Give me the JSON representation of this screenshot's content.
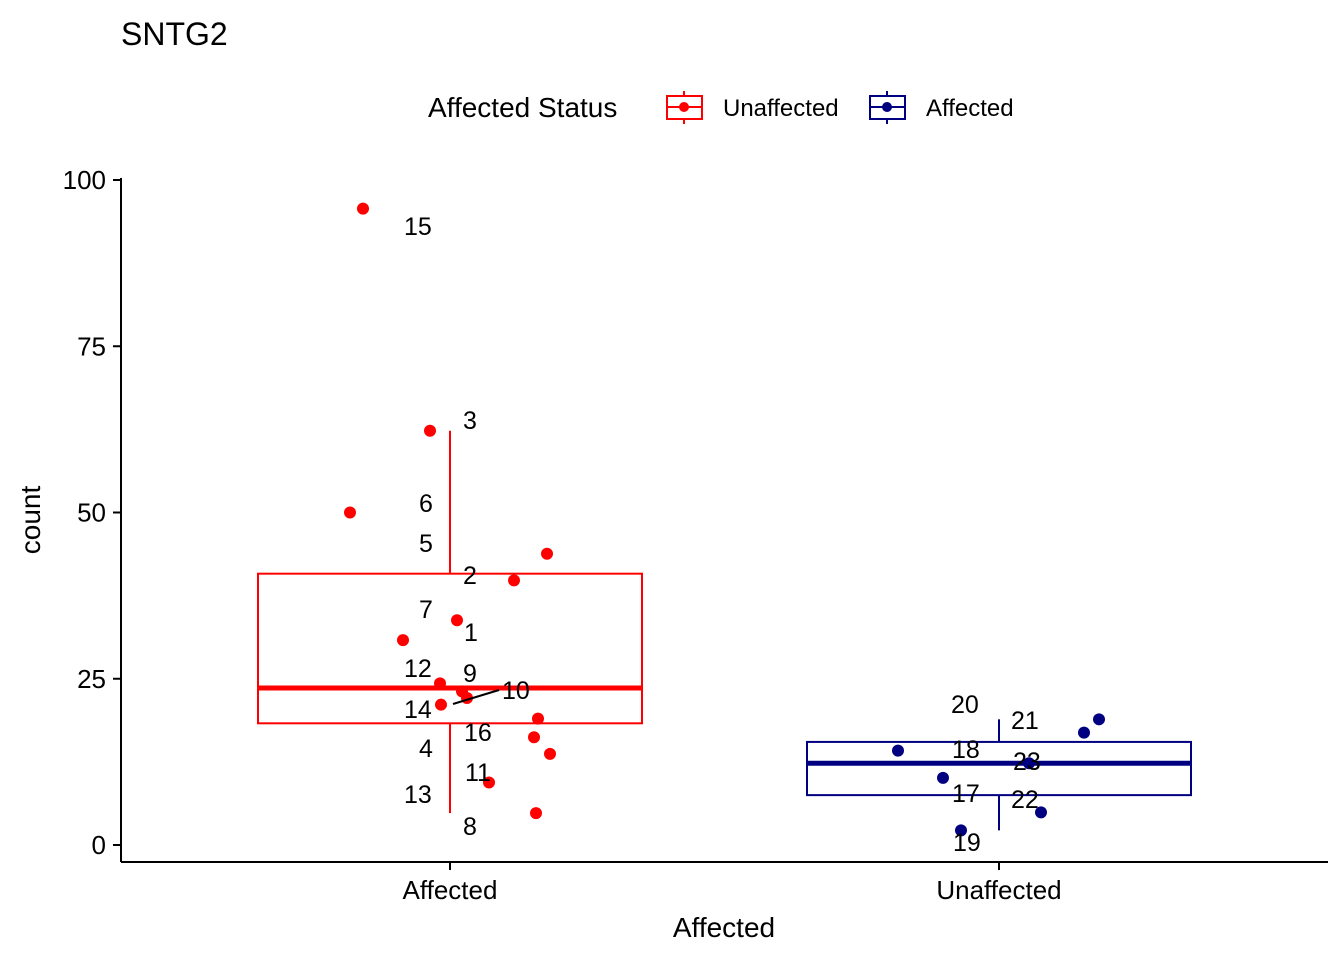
{
  "chart_data": {
    "type": "boxplot",
    "title": "SNTG2",
    "xlabel": "Affected",
    "ylabel": "count",
    "ylim": [
      0,
      100
    ],
    "yticks": [
      0,
      25,
      50,
      75,
      100
    ],
    "categories": [
      "Affected",
      "Unaffected"
    ],
    "legend": {
      "title": "Affected Status",
      "position": "top",
      "entries": [
        {
          "label": "Unaffected",
          "color": "#ff0000"
        },
        {
          "label": "Affected",
          "color": "#000080"
        }
      ]
    },
    "boxes": [
      {
        "category": "Affected",
        "color": "#ff0000",
        "q1": 18.3,
        "median": 23.6,
        "q3": 40.8,
        "whisker_low": 4.8,
        "whisker_high": 62.3
      },
      {
        "category": "Unaffected",
        "color": "#000080",
        "q1": 7.5,
        "median": 12.3,
        "q3": 15.5,
        "whisker_low": 2.2,
        "whisker_high": 18.9
      }
    ],
    "points": [
      {
        "category": "Affected",
        "value": 95.7
      },
      {
        "category": "Affected",
        "value": 62.3
      },
      {
        "category": "Affected",
        "value": 50.0
      },
      {
        "category": "Affected",
        "value": 43.8
      },
      {
        "category": "Affected",
        "value": 39.8
      },
      {
        "category": "Affected",
        "value": 33.8
      },
      {
        "category": "Affected",
        "value": 30.8
      },
      {
        "category": "Affected",
        "value": 24.3
      },
      {
        "category": "Affected",
        "value": 23.1
      },
      {
        "category": "Affected",
        "value": 22.1
      },
      {
        "category": "Affected",
        "value": 21.1
      },
      {
        "category": "Affected",
        "value": 19.0
      },
      {
        "category": "Affected",
        "value": 16.2
      },
      {
        "category": "Affected",
        "value": 13.7
      },
      {
        "category": "Affected",
        "value": 9.4
      },
      {
        "category": "Affected",
        "value": 4.8
      },
      {
        "category": "Unaffected",
        "value": 18.9
      },
      {
        "category": "Unaffected",
        "value": 16.9
      },
      {
        "category": "Unaffected",
        "value": 14.2
      },
      {
        "category": "Unaffected",
        "value": 12.3
      },
      {
        "category": "Unaffected",
        "value": 10.1
      },
      {
        "category": "Unaffected",
        "value": 4.9
      },
      {
        "category": "Unaffected",
        "value": 2.2
      }
    ],
    "annotations": [
      "15",
      "3",
      "6",
      "5",
      "2",
      "7",
      "1",
      "12",
      "9",
      "10",
      "14",
      "16",
      "4",
      "11",
      "13",
      "8",
      "20",
      "21",
      "18",
      "23",
      "17",
      "22",
      "19"
    ]
  }
}
